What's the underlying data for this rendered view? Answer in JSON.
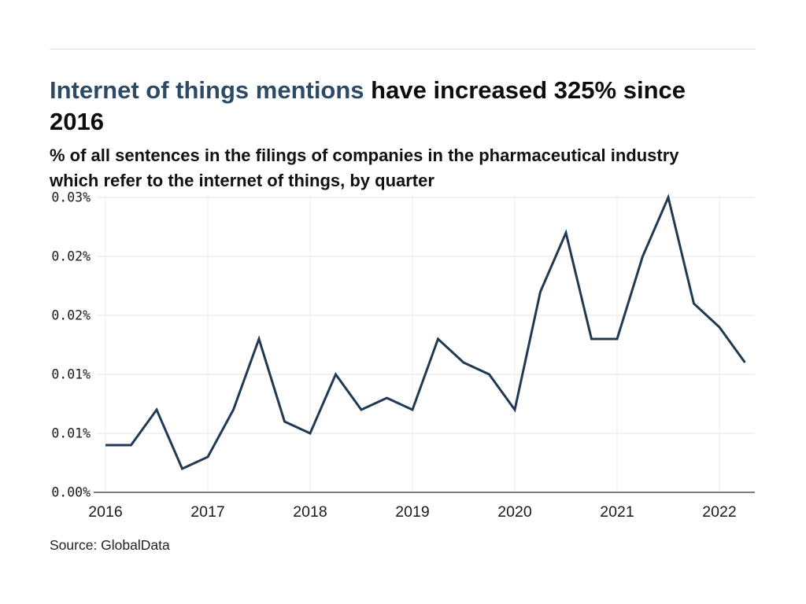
{
  "header": {
    "title_highlight": "Internet of things mentions",
    "title_rest": " have increased 325% since",
    "title_line2": "2016",
    "subtitle_line1": "% of all sentences in the filings of companies in the pharmaceutical industry",
    "subtitle_line2": "which refer to the internet of things, by quarter"
  },
  "source": "Source: GlobalData",
  "colors": {
    "title_highlight": "#2c4a66",
    "title_text": "#0d0d0d",
    "line": "#203a54",
    "axis": "#7c7c7c",
    "gridline_h": "#e6e6e6",
    "gridline_v": "#ececec",
    "top_rule": "#dcdcdc",
    "tick_text": "#1a1a1a"
  },
  "chart_data": {
    "type": "line",
    "title": "Internet of things mentions have increased 325% since 2016",
    "subtitle": "% of all sentences in the filings of companies in the pharmaceutical industry which refer to the internet of things, by quarter",
    "unit": "%",
    "grid": true,
    "legend": false,
    "ylim": [
      0,
      0.025
    ],
    "x": [
      "2016 Q1",
      "2016 Q2",
      "2016 Q3",
      "2016 Q4",
      "2017 Q1",
      "2017 Q2",
      "2017 Q3",
      "2017 Q4",
      "2018 Q1",
      "2018 Q2",
      "2018 Q3",
      "2018 Q4",
      "2019 Q1",
      "2019 Q2",
      "2019 Q3",
      "2019 Q4",
      "2020 Q1",
      "2020 Q2",
      "2020 Q3",
      "2020 Q4",
      "2021 Q1",
      "2021 Q2",
      "2021 Q3",
      "2021 Q4",
      "2022 Q1",
      "2022 Q2"
    ],
    "values": [
      0.004,
      0.004,
      0.007,
      0.002,
      0.003,
      0.007,
      0.013,
      0.006,
      0.005,
      0.01,
      0.007,
      0.008,
      0.007,
      0.013,
      0.011,
      0.01,
      0.007,
      0.017,
      0.022,
      0.013,
      0.013,
      0.02,
      0.025,
      0.016,
      0.014,
      0.011
    ],
    "yticks": {
      "values": [
        0,
        0.005,
        0.01,
        0.015,
        0.02,
        0.025
      ],
      "labels": [
        "0.00%",
        "0.01%",
        "0.01%",
        "0.02%",
        "0.02%",
        "0.03%"
      ]
    },
    "xticks": {
      "years": [
        2016,
        2017,
        2018,
        2019,
        2020,
        2021,
        2022
      ]
    }
  }
}
